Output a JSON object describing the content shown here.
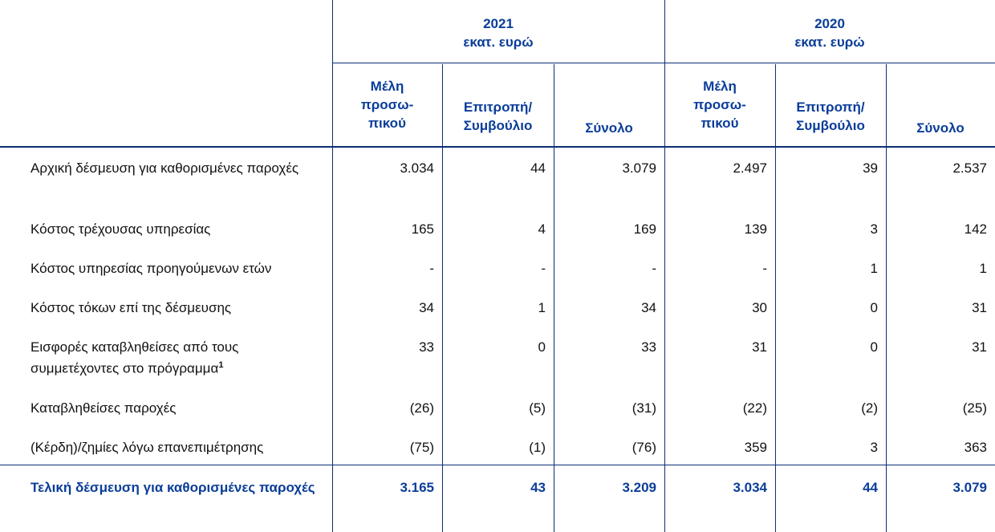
{
  "header": {
    "year_2021": "2021",
    "year_2020": "2020",
    "unit_2021": "εκατ. ευρώ",
    "unit_2020": "εκατ. ευρώ",
    "col_staff": [
      "Μέλη",
      "προσω-",
      "πικού"
    ],
    "col_board": [
      "Επιτροπή/",
      "Συμβούλιο"
    ],
    "col_total": "Σύνολο"
  },
  "rows": [
    {
      "label": "Αρχική δέσμευση για καθορισμένες παροχές",
      "values": [
        "3.034",
        "44",
        "3.079",
        "2.497",
        "39",
        "2.537"
      ]
    },
    {
      "label": "Κόστος τρέχουσας υπηρεσίας",
      "values": [
        "165",
        "4",
        "169",
        "139",
        "3",
        "142"
      ]
    },
    {
      "label": "Κόστος υπηρεσίας προηγούμενων ετών",
      "values": [
        "-",
        "-",
        "-",
        "-",
        "1",
        "1"
      ]
    },
    {
      "label": "Κόστος τόκων επί της δέσμευσης",
      "values": [
        "34",
        "1",
        "34",
        "30",
        "0",
        "31"
      ]
    },
    {
      "label": "Εισφορές καταβληθείσες από τους συμμετέχοντες στο πρόγραμμα",
      "footnote": "1",
      "values": [
        "33",
        "0",
        "33",
        "31",
        "0",
        "31"
      ]
    },
    {
      "label": "Καταβληθείσες παροχές",
      "values": [
        "(26)",
        "(5)",
        "(31)",
        "(22)",
        "(2)",
        "(25)"
      ]
    },
    {
      "label": "(Κέρδη)/ζημίες λόγω επανεπιμέτρησης",
      "values": [
        "(75)",
        "(1)",
        "(76)",
        "359",
        "3",
        "363"
      ]
    }
  ],
  "total": {
    "label": "Τελική δέσμευση για καθορισμένες παροχές",
    "values": [
      "3.165",
      "43",
      "3.209",
      "3.034",
      "44",
      "3.079"
    ]
  }
}
